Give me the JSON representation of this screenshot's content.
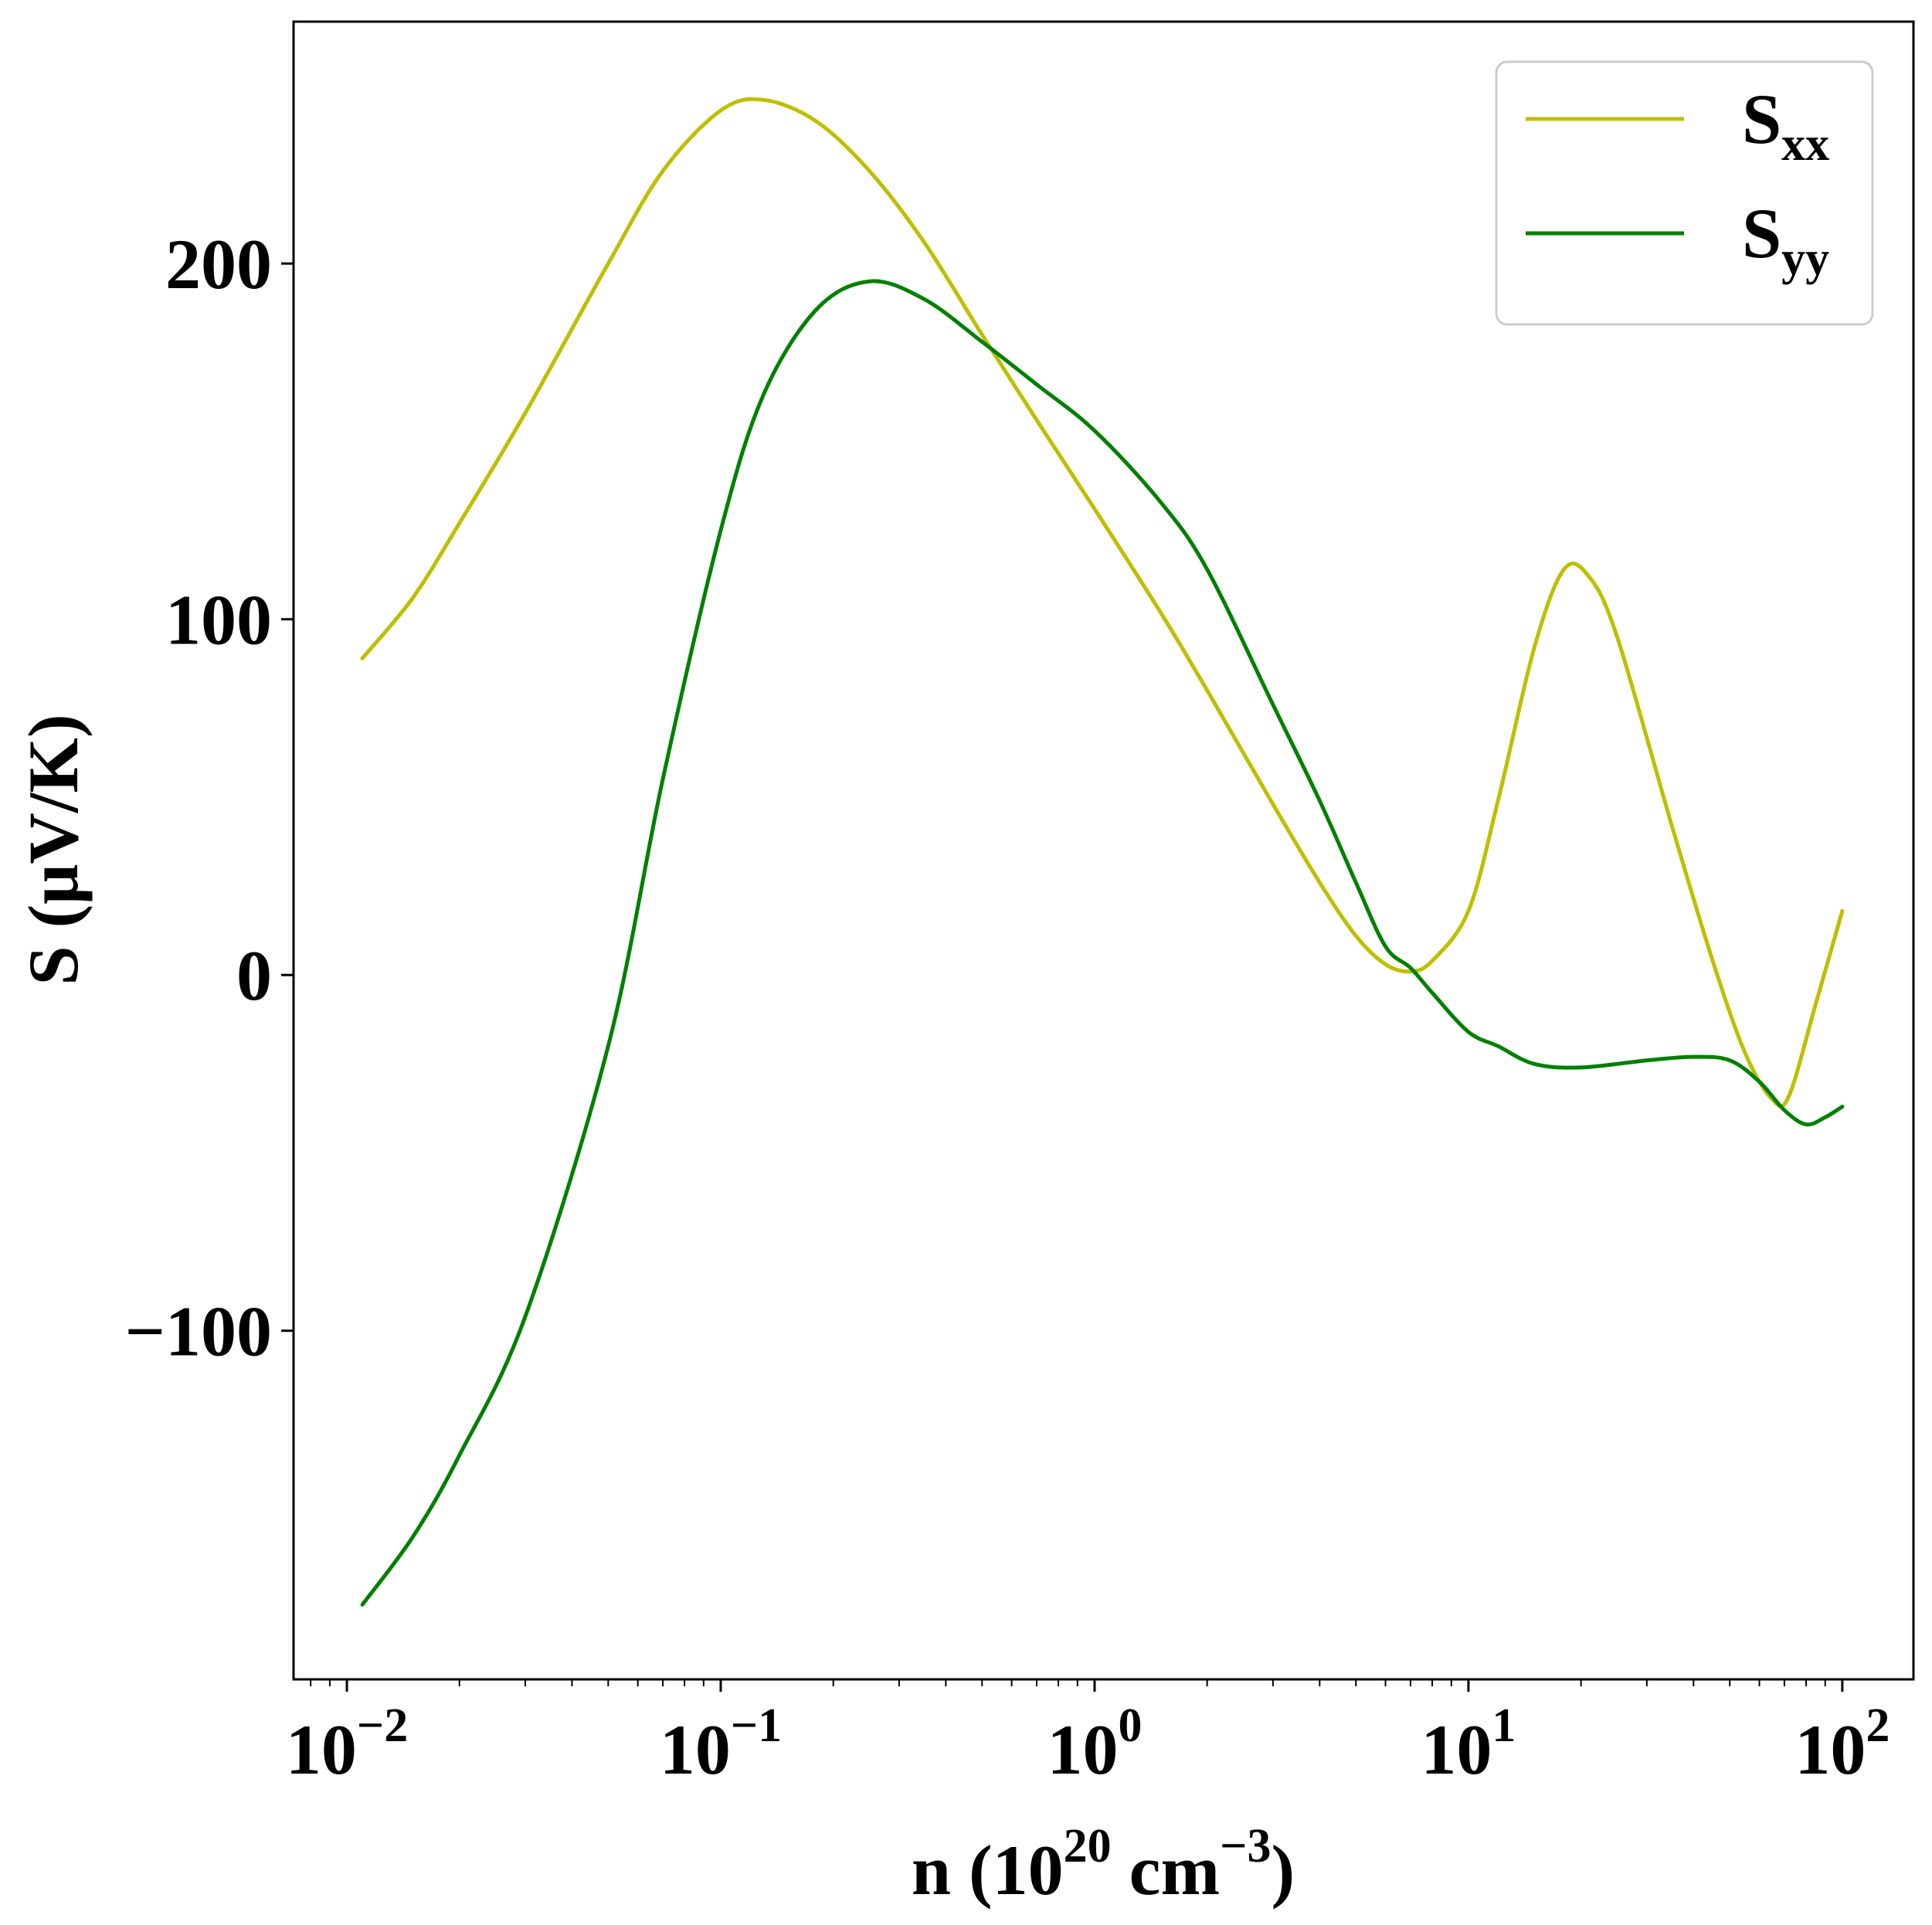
{
  "chart_data": {
    "type": "line",
    "title": "",
    "xlabel": {
      "base": "n (10",
      "exp1": "20",
      "mid": " cm",
      "exp2": "−3",
      "end": ")"
    },
    "ylabel": "S (μV/K)",
    "x_scale": "log",
    "xlim": [
      0.0072,
      155
    ],
    "ylim": [
      -198,
      268
    ],
    "x_ticks": [
      {
        "value": 0.01,
        "base": "10",
        "exp": "−2"
      },
      {
        "value": 0.1,
        "base": "10",
        "exp": "−1"
      },
      {
        "value": 1,
        "base": "10",
        "exp": "0"
      },
      {
        "value": 10,
        "base": "10",
        "exp": "1"
      },
      {
        "value": 100,
        "base": "10",
        "exp": "2"
      }
    ],
    "y_ticks": [
      {
        "value": -100,
        "label": "−100"
      },
      {
        "value": 0,
        "label": "0"
      },
      {
        "value": 100,
        "label": "100"
      },
      {
        "value": 200,
        "label": "200"
      }
    ],
    "grid": false,
    "legend_position": "top-right",
    "series": [
      {
        "name_base": "S",
        "name_sub": "xx",
        "color": "#bfbf00",
        "points": [
          [
            0.011,
            89
          ],
          [
            0.015,
            106
          ],
          [
            0.02,
            127
          ],
          [
            0.03,
            158
          ],
          [
            0.05,
            200
          ],
          [
            0.07,
            226
          ],
          [
            0.1,
            243
          ],
          [
            0.13,
            246
          ],
          [
            0.18,
            240
          ],
          [
            0.25,
            226
          ],
          [
            0.35,
            206
          ],
          [
            0.5,
            180
          ],
          [
            0.7,
            156
          ],
          [
            1.0,
            131
          ],
          [
            1.5,
            102
          ],
          [
            2.0,
            80
          ],
          [
            3.0,
            48
          ],
          [
            4.0,
            26
          ],
          [
            5.0,
            11
          ],
          [
            6.0,
            3
          ],
          [
            7.0,
            1
          ],
          [
            8.0,
            4
          ],
          [
            10.0,
            18
          ],
          [
            12.0,
            49
          ],
          [
            15.0,
            92
          ],
          [
            18.0,
            114
          ],
          [
            21.0,
            112
          ],
          [
            25.0,
            95
          ],
          [
            35.0,
            42
          ],
          [
            45.0,
            4
          ],
          [
            55.0,
            -22
          ],
          [
            65.0,
            -35
          ],
          [
            72.0,
            -34
          ],
          [
            85.0,
            -8
          ],
          [
            100.0,
            18
          ]
        ]
      },
      {
        "name_base": "S",
        "name_sub": "yy",
        "color": "#008000",
        "points": [
          [
            0.011,
            -177
          ],
          [
            0.015,
            -158
          ],
          [
            0.02,
            -135
          ],
          [
            0.03,
            -96
          ],
          [
            0.05,
            -20
          ],
          [
            0.07,
            55
          ],
          [
            0.1,
            125
          ],
          [
            0.13,
            163
          ],
          [
            0.18,
            187
          ],
          [
            0.25,
            195
          ],
          [
            0.35,
            190
          ],
          [
            0.5,
            178
          ],
          [
            0.7,
            166
          ],
          [
            1.0,
            153
          ],
          [
            1.5,
            133
          ],
          [
            2.0,
            114
          ],
          [
            3.0,
            76
          ],
          [
            4.0,
            49
          ],
          [
            5.0,
            26
          ],
          [
            6.0,
            8
          ],
          [
            7.0,
            2
          ],
          [
            8.0,
            -5
          ],
          [
            10.0,
            -16
          ],
          [
            12.0,
            -20
          ],
          [
            15.0,
            -25
          ],
          [
            20.0,
            -26
          ],
          [
            30.0,
            -24
          ],
          [
            40.0,
            -23
          ],
          [
            50.0,
            -24
          ],
          [
            60.0,
            -30
          ],
          [
            70.0,
            -38
          ],
          [
            80.0,
            -42
          ],
          [
            90.0,
            -40
          ],
          [
            100.0,
            -37
          ]
        ]
      }
    ]
  }
}
